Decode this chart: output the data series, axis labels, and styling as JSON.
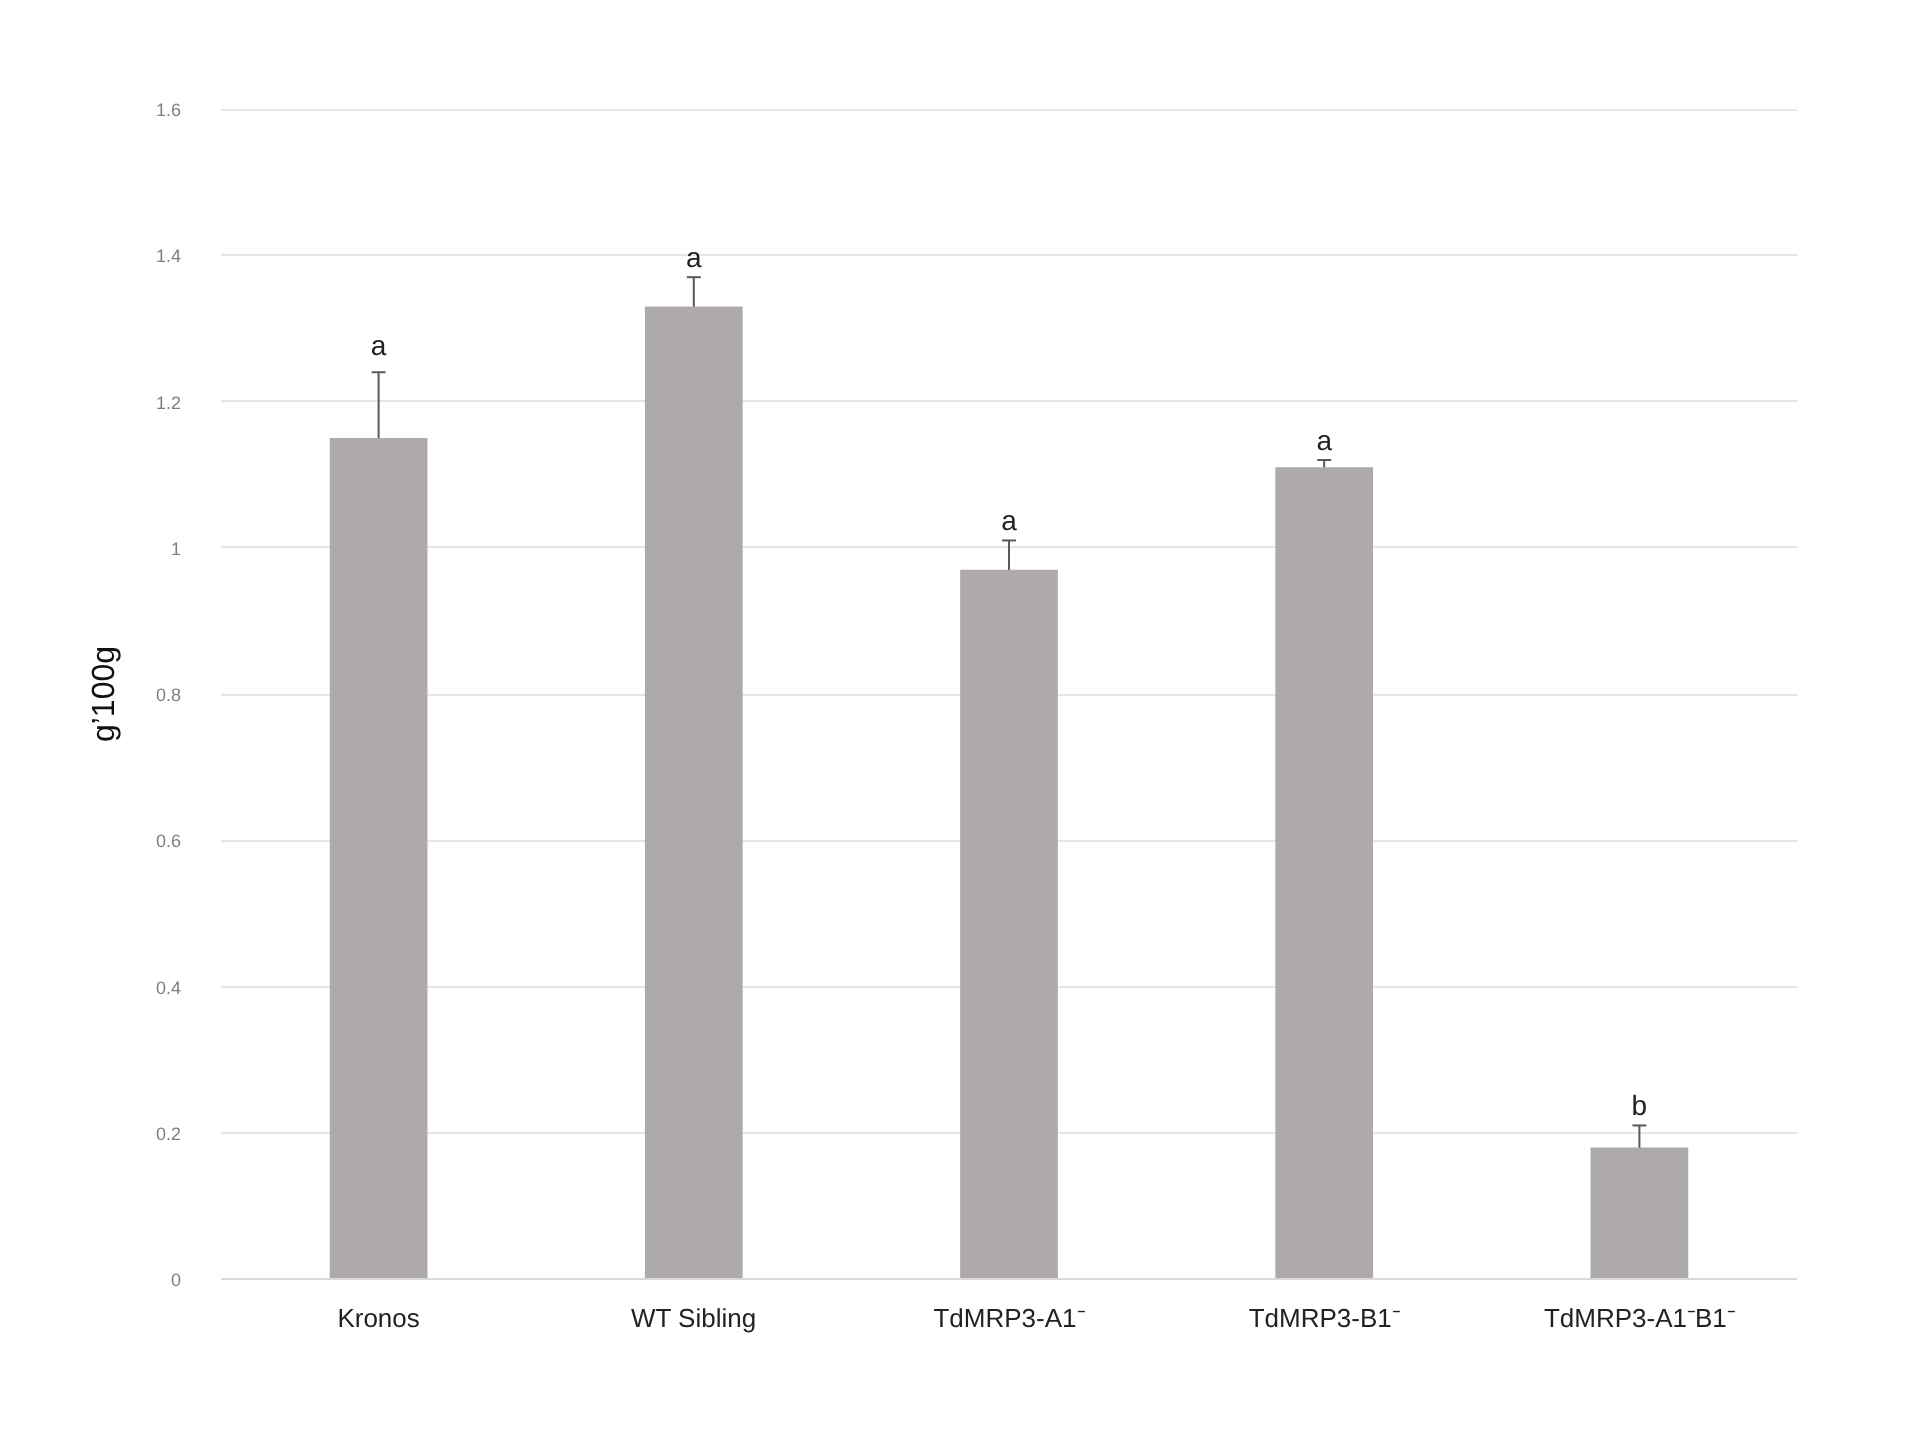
{
  "chart_data": {
    "type": "bar",
    "categories": [
      "Kronos",
      "WT Sibling",
      "TdMRP3-A1⁻",
      "TdMRP3-B1⁻",
      "TdMRP3-A1⁻B1⁻"
    ],
    "values": [
      1.15,
      1.33,
      0.97,
      1.11,
      0.18
    ],
    "errors": [
      0.09,
      0.04,
      0.04,
      0.01,
      0.03
    ],
    "color": "#aeaaaa",
    "ylabel": "g’100g",
    "ylim": [
      0,
      1.6
    ],
    "yticks": [
      0,
      0.2,
      0.4,
      0.6,
      0.8,
      1,
      1.2,
      1.4,
      1.6
    ],
    "grid": "y",
    "annotations": [
      {
        "text": "a",
        "x": "Kronos",
        "y": 1.25
      },
      {
        "text": "a",
        "x": "WT Sibling",
        "y": 1.37
      },
      {
        "text": "a",
        "x": "TdMRP3-A1⁻",
        "y": 1.01
      },
      {
        "text": "a",
        "x": "TdMRP3-B1⁻",
        "y": 1.12
      },
      {
        "text": "b",
        "x": "TdMRP3-A1⁻B1⁻",
        "y": 0.21
      }
    ]
  }
}
